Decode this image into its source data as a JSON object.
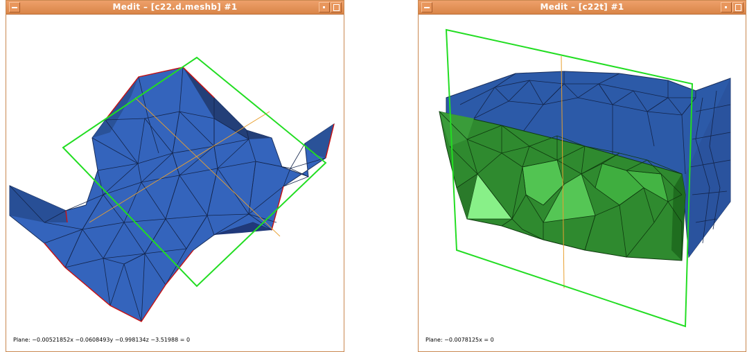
{
  "windows": [
    {
      "title": "Medit – [c22.d.meshb] #1",
      "status": "Plane:  −0.00521852x −0.0608493y −0.998134z −3.51988 = 0"
    },
    {
      "title": "Medit – [c22t] #1",
      "status": "Plane:  −0.0078125x = 0"
    }
  ],
  "colors": {
    "title_bar": "#e08d52",
    "mesh_blue": "#3060b8",
    "mesh_dark_blue": "#1f3d7a",
    "clip_plane": "#22dd22",
    "mesh_green": "#2f8a2f",
    "mesh_light_green": "#80f080",
    "boundary_red": "#cc1111",
    "axis_orange": "#e8a030"
  }
}
